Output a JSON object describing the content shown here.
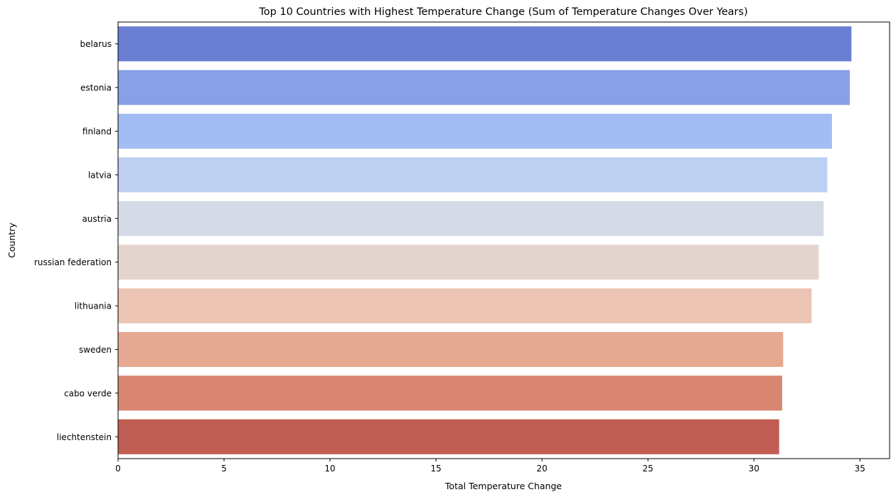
{
  "chart_data": {
    "type": "bar",
    "orientation": "horizontal",
    "title": "Top 10 Countries with Highest Temperature Change (Sum of Temperature Changes Over Years)",
    "xlabel": "Total Temperature Change",
    "ylabel": "Country",
    "xlim": [
      0,
      36.4
    ],
    "xticks": [
      0,
      5,
      10,
      15,
      20,
      25,
      30,
      35
    ],
    "grid": false,
    "legend": "none",
    "categories": [
      "belarus",
      "estonia",
      "finland",
      "latvia",
      "austria",
      "russian federation",
      "lithuania",
      "sweden",
      "cabo verde",
      "liechtenstein"
    ],
    "values": [
      34.6,
      34.52,
      33.68,
      33.46,
      33.29,
      33.06,
      32.72,
      31.38,
      31.33,
      31.19
    ],
    "colors": [
      "#6a7fd4",
      "#87a0e6",
      "#a2bcf4",
      "#bdd0f2",
      "#d5dbe6",
      "#e4d6cf",
      "#ebc4b3",
      "#e5a891",
      "#d88571",
      "#c15e53"
    ]
  }
}
